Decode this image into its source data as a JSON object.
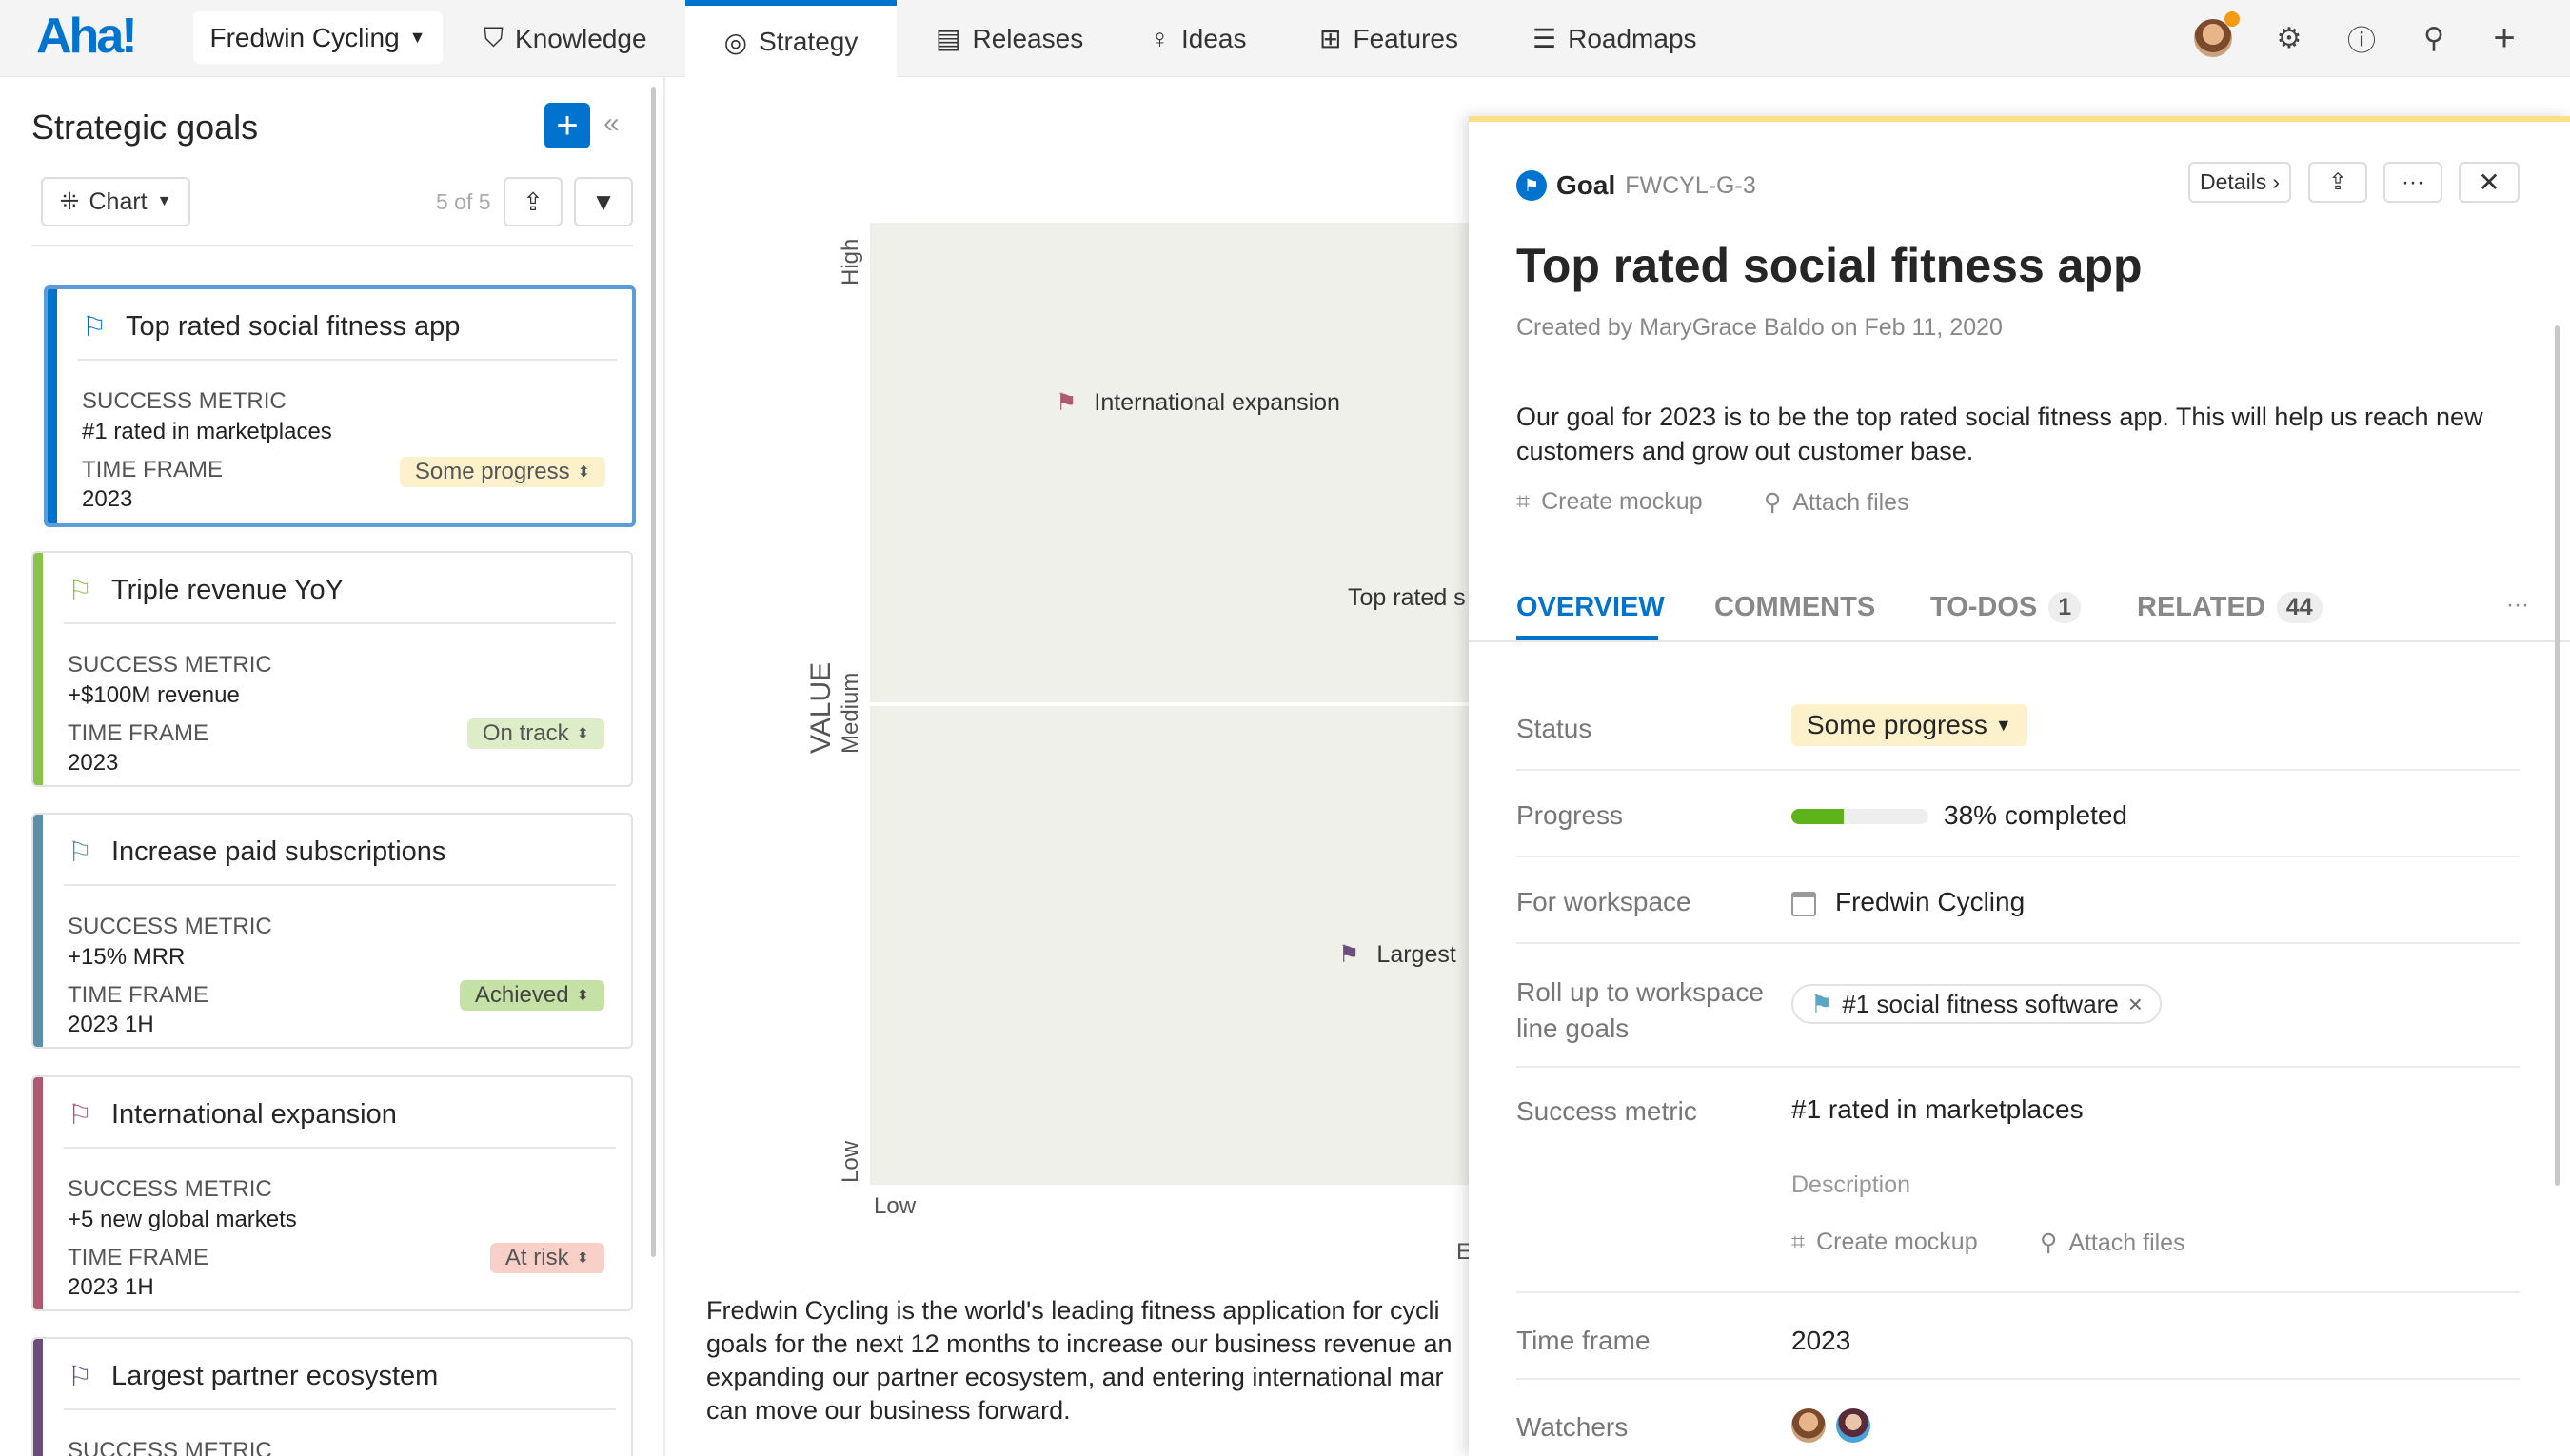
{
  "nav": {
    "logo": "Aha!",
    "workspace": "Fredwin Cycling",
    "items": [
      {
        "label": "Knowledge",
        "icon": "book-icon"
      },
      {
        "label": "Strategy",
        "icon": "target-icon"
      },
      {
        "label": "Releases",
        "icon": "calendar-icon"
      },
      {
        "label": "Ideas",
        "icon": "lightbulb-icon"
      },
      {
        "label": "Features",
        "icon": "grid-icon"
      },
      {
        "label": "Roadmaps",
        "icon": "roadmap-icon"
      }
    ],
    "active": "Strategy"
  },
  "sidebar": {
    "title": "Strategic goals",
    "view": "Chart",
    "count": "5 of 5",
    "goals": [
      {
        "name": "Top rated social fitness app",
        "metric_label": "SUCCESS METRIC",
        "metric": "#1 rated in marketplaces",
        "tf_label": "TIME FRAME",
        "timeframe": "2023",
        "status": "Some progress",
        "color": "#0073cf"
      },
      {
        "name": "Triple revenue YoY",
        "metric_label": "SUCCESS METRIC",
        "metric": "+$100M revenue",
        "tf_label": "TIME FRAME",
        "timeframe": "2023",
        "status": "On track",
        "color": "#8bc34a"
      },
      {
        "name": "Increase paid subscriptions",
        "metric_label": "SUCCESS METRIC",
        "metric": "+15% MRR",
        "tf_label": "TIME FRAME",
        "timeframe": "2023 1H",
        "status": "Achieved",
        "color": "#5b8fa8"
      },
      {
        "name": "International expansion",
        "metric_label": "SUCCESS METRIC",
        "metric": "+5 new global markets",
        "tf_label": "TIME FRAME",
        "timeframe": "2023 1H",
        "status": "At risk",
        "color": "#b05a72"
      },
      {
        "name": "Largest partner ecosystem",
        "metric_label": "SUCCESS METRIC",
        "color": "#6a4c7d"
      }
    ]
  },
  "chart": {
    "ylabel": "VALUE",
    "yticks": [
      "High",
      "Medium",
      "Low"
    ],
    "xticks": [
      "Low"
    ],
    "xlabel_partial": "E",
    "points": [
      {
        "label": "International expansion",
        "color": "#b05a72"
      },
      {
        "label": "Top rated s",
        "color": "#0073cf"
      },
      {
        "label": "Largest",
        "color": "#6a4c7d"
      }
    ]
  },
  "description": [
    "Fredwin Cycling is the world's leading fitness application for cycli",
    "goals for the next 12 months to increase our business revenue an",
    "expanding our partner ecosystem, and entering international mar",
    "can move our business forward."
  ],
  "detail": {
    "type": "Goal",
    "id": "FWCYL-G-3",
    "details_label": "Details",
    "title": "Top rated social fitness app",
    "created": "Created by MaryGrace Baldo on Feb 11, 2020",
    "desc1": "Our goal for 2023 is to be the top rated social fitness app. This will help us reach new",
    "desc2": "customers and grow out customer base.",
    "create_mockup": "Create mockup",
    "attach_files": "Attach files",
    "tabs": [
      {
        "label": "OVERVIEW"
      },
      {
        "label": "COMMENTS"
      },
      {
        "label": "TO-DOS",
        "count": "1"
      },
      {
        "label": "RELATED",
        "count": "44"
      }
    ],
    "fields": {
      "status_label": "Status",
      "status": "Some progress",
      "progress_label": "Progress",
      "progress_pct": 38,
      "progress_text": "38% completed",
      "workspace_label": "For workspace",
      "workspace": "Fredwin Cycling",
      "rollup_label1": "Roll up to workspace",
      "rollup_label2": "line goals",
      "rollup": "#1 social fitness software",
      "metric_label": "Success metric",
      "metric": "#1 rated in marketplaces",
      "description_placeholder": "Description",
      "timeframe_label": "Time frame",
      "timeframe": "2023",
      "watchers_label": "Watchers"
    },
    "colors": {
      "accent": "#0073cf",
      "status_bg": "#fdf1cc",
      "progress": "#5fb31a"
    }
  }
}
